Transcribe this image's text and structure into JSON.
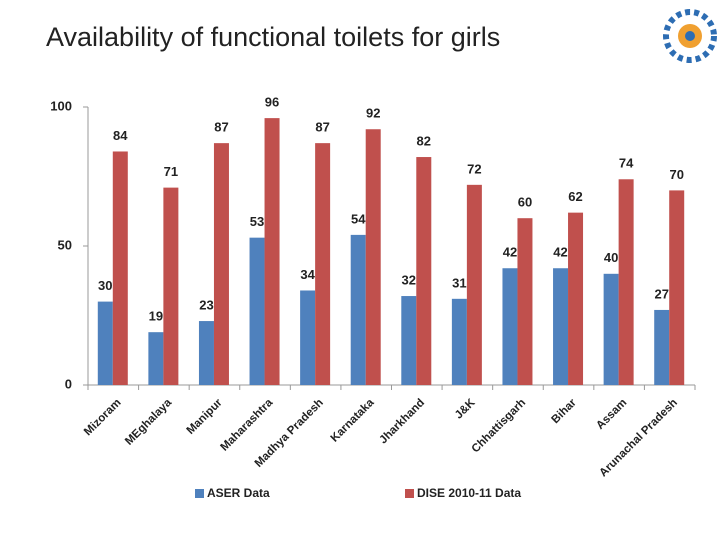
{
  "chart_data": {
    "type": "bar",
    "title": "Availability of functional toilets for girls",
    "categories": [
      "Mizoram",
      "MEghalaya",
      "Manipur",
      "Maharashtra",
      "Madhya Pradesh",
      "Karnataka",
      "Jharkhand",
      "J&K",
      "Chhattisgarh",
      "Bihar",
      "Assam",
      "Arunachal Pradesh"
    ],
    "series": [
      {
        "name": "ASER Data",
        "color": "#4f81bd",
        "values": [
          30,
          19,
          23,
          53,
          34,
          54,
          32,
          31,
          42,
          42,
          40,
          27
        ]
      },
      {
        "name": "DISE 2010-11 Data",
        "color": "#c0504d",
        "values": [
          84,
          71,
          87,
          96,
          87,
          92,
          82,
          72,
          60,
          62,
          74,
          70
        ]
      }
    ],
    "ylim": [
      0,
      100
    ],
    "yticks": [
      0,
      50,
      100
    ]
  }
}
